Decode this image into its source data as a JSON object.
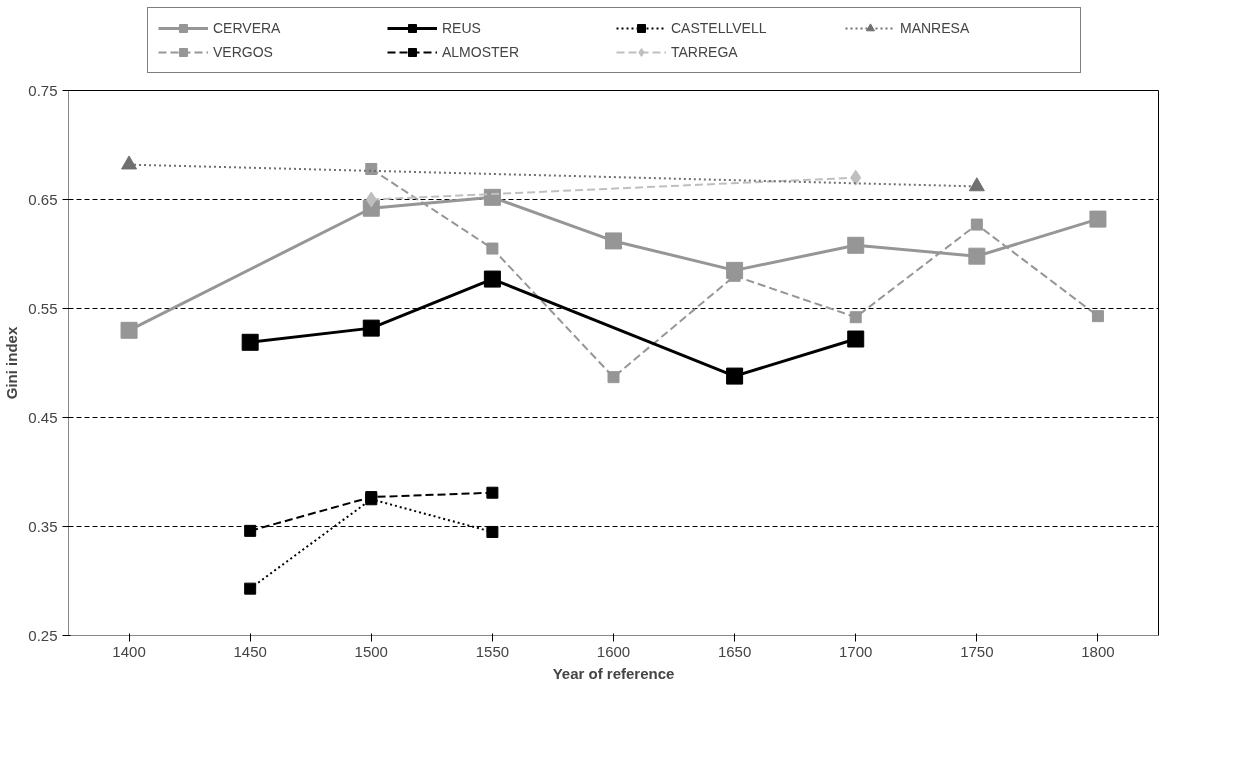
{
  "chart_data": {
    "type": "line",
    "xlabel": "Year of reference",
    "ylabel": "Gini index",
    "xlim": [
      1375,
      1825
    ],
    "xticks": [
      1400,
      1450,
      1500,
      1550,
      1600,
      1650,
      1700,
      1750,
      1800
    ],
    "ylim": [
      0.25,
      0.75
    ],
    "yticks": [
      0.25,
      0.35,
      0.45,
      0.55,
      0.65,
      0.75
    ],
    "grid": "y",
    "legend": "top",
    "series": [
      {
        "name": "CERVERA",
        "color": "#969696",
        "marker": "square",
        "line_style": "solid",
        "x": [
          1400,
          1500,
          1550,
          1600,
          1650,
          1700,
          1750,
          1800
        ],
        "values": [
          0.53,
          0.642,
          0.652,
          0.612,
          0.585,
          0.608,
          0.598,
          0.632
        ]
      },
      {
        "name": "VERGOS",
        "color": "#969696",
        "marker": "square",
        "line_style": "dashed",
        "x": [
          1500,
          1550,
          1600,
          1650,
          1700,
          1750,
          1800
        ],
        "values": [
          0.678,
          0.605,
          0.487,
          0.58,
          0.542,
          0.627,
          0.543
        ]
      },
      {
        "name": "REUS",
        "color": "#000000",
        "marker": "square",
        "line_style": "solid",
        "x": [
          1450,
          1500,
          1550,
          1650,
          1700
        ],
        "values": [
          0.519,
          0.532,
          0.577,
          0.488,
          0.522
        ]
      },
      {
        "name": "ALMOSTER",
        "color": "#000000",
        "marker": "square",
        "line_style": "dashed",
        "x": [
          1450,
          1500,
          1550
        ],
        "values": [
          0.346,
          0.377,
          0.381
        ]
      },
      {
        "name": "CASTELLVELL",
        "color": "#000000",
        "marker": "square",
        "line_style": "dotted",
        "x": [
          1450,
          1500,
          1550
        ],
        "values": [
          0.293,
          0.375,
          0.345
        ]
      },
      {
        "name": "TARREGA",
        "color": "#bfbfbf",
        "marker": "diamond",
        "line_style": "dashed",
        "x": [
          1500,
          1700
        ],
        "values": [
          0.65,
          0.67
        ]
      },
      {
        "name": "MANRESA",
        "color": "#707070",
        "marker": "triangle",
        "line_style": "dotted",
        "x": [
          1400,
          1750
        ],
        "values": [
          0.682,
          0.662
        ]
      }
    ]
  }
}
